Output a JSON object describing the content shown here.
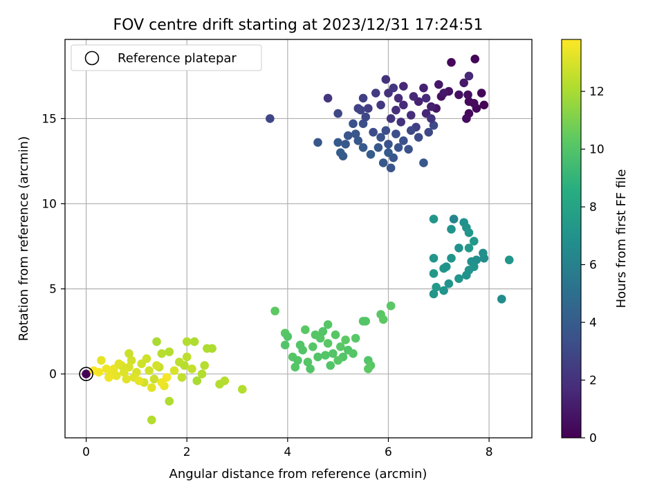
{
  "chart_data": {
    "type": "scatter",
    "title": "FOV centre drift starting at 2023/12/31 17:24:51",
    "xlabel": "Angular distance from reference (arcmin)",
    "ylabel": "Rotation from reference (arcmin)",
    "xlim": [
      -0.42,
      8.85
    ],
    "ylim": [
      -3.75,
      19.65
    ],
    "xticks": [
      0,
      2,
      4,
      6,
      8
    ],
    "yticks": [
      0,
      5,
      10,
      15
    ],
    "grid": true,
    "legend": {
      "location": "top-left",
      "entries": [
        "Reference platepar"
      ]
    },
    "reference_point": {
      "x": 0,
      "y": 0
    },
    "colorbar": {
      "label": "Hours from first FF file",
      "range": [
        0,
        13.8
      ],
      "ticks": [
        0,
        2,
        4,
        6,
        8,
        10,
        12
      ],
      "colormap": "viridis"
    },
    "series": [
      {
        "name": "FOV centre drift",
        "points": [
          {
            "x": 0.0,
            "y": 0.0,
            "h": 0.0
          },
          {
            "x": 7.72,
            "y": 18.5,
            "h": 0.2
          },
          {
            "x": 7.25,
            "y": 18.3,
            "h": 0.3
          },
          {
            "x": 7.85,
            "y": 16.5,
            "h": 0.2
          },
          {
            "x": 7.9,
            "y": 15.8,
            "h": 0.1
          },
          {
            "x": 7.75,
            "y": 15.6,
            "h": 0.2
          },
          {
            "x": 7.6,
            "y": 15.3,
            "h": 0.3
          },
          {
            "x": 7.55,
            "y": 15.0,
            "h": 0.4
          },
          {
            "x": 7.6,
            "y": 16.0,
            "h": 0.3
          },
          {
            "x": 7.58,
            "y": 16.4,
            "h": 0.5
          },
          {
            "x": 7.7,
            "y": 15.9,
            "h": 0.4
          },
          {
            "x": 7.4,
            "y": 16.4,
            "h": 0.6
          },
          {
            "x": 7.2,
            "y": 16.6,
            "h": 0.7
          },
          {
            "x": 7.05,
            "y": 16.3,
            "h": 0.6
          },
          {
            "x": 6.95,
            "y": 15.6,
            "h": 0.8
          },
          {
            "x": 7.0,
            "y": 17.0,
            "h": 0.9
          },
          {
            "x": 7.5,
            "y": 17.1,
            "h": 1.0
          },
          {
            "x": 7.1,
            "y": 16.5,
            "h": 0.9
          },
          {
            "x": 7.6,
            "y": 17.5,
            "h": 1.6
          },
          {
            "x": 6.85,
            "y": 15.7,
            "h": 1.2
          },
          {
            "x": 6.7,
            "y": 16.8,
            "h": 1.3
          },
          {
            "x": 6.6,
            "y": 16.0,
            "h": 1.4
          },
          {
            "x": 6.75,
            "y": 15.3,
            "h": 1.5
          },
          {
            "x": 6.5,
            "y": 16.3,
            "h": 1.6
          },
          {
            "x": 6.3,
            "y": 15.8,
            "h": 1.7
          },
          {
            "x": 6.2,
            "y": 16.2,
            "h": 1.8
          },
          {
            "x": 6.15,
            "y": 15.5,
            "h": 1.9
          },
          {
            "x": 6.0,
            "y": 16.5,
            "h": 2.0
          },
          {
            "x": 6.05,
            "y": 15.0,
            "h": 2.1
          },
          {
            "x": 5.95,
            "y": 17.3,
            "h": 2.0
          },
          {
            "x": 6.1,
            "y": 16.8,
            "h": 2.2
          },
          {
            "x": 5.85,
            "y": 15.8,
            "h": 2.3
          },
          {
            "x": 5.75,
            "y": 16.5,
            "h": 2.4
          },
          {
            "x": 5.6,
            "y": 15.6,
            "h": 2.5
          },
          {
            "x": 5.5,
            "y": 16.2,
            "h": 2.6
          },
          {
            "x": 5.4,
            "y": 15.6,
            "h": 2.7
          },
          {
            "x": 4.8,
            "y": 16.2,
            "h": 2.2
          },
          {
            "x": 3.65,
            "y": 15.0,
            "h": 2.9
          },
          {
            "x": 6.3,
            "y": 16.9,
            "h": 1.6
          },
          {
            "x": 6.45,
            "y": 15.2,
            "h": 1.8
          },
          {
            "x": 6.25,
            "y": 14.8,
            "h": 2.0
          },
          {
            "x": 6.55,
            "y": 14.5,
            "h": 2.6
          },
          {
            "x": 6.8,
            "y": 14.2,
            "h": 3.0
          },
          {
            "x": 6.6,
            "y": 13.9,
            "h": 3.2
          },
          {
            "x": 6.45,
            "y": 14.3,
            "h": 3.0
          },
          {
            "x": 6.3,
            "y": 13.7,
            "h": 3.4
          },
          {
            "x": 6.15,
            "y": 14.1,
            "h": 3.3
          },
          {
            "x": 6.0,
            "y": 13.5,
            "h": 3.5
          },
          {
            "x": 5.95,
            "y": 14.3,
            "h": 3.3
          },
          {
            "x": 5.85,
            "y": 13.9,
            "h": 3.5
          },
          {
            "x": 5.8,
            "y": 13.3,
            "h": 3.7
          },
          {
            "x": 5.9,
            "y": 12.4,
            "h": 3.8
          },
          {
            "x": 6.05,
            "y": 12.1,
            "h": 3.6
          },
          {
            "x": 6.1,
            "y": 12.7,
            "h": 3.7
          },
          {
            "x": 6.7,
            "y": 12.4,
            "h": 3.8
          },
          {
            "x": 6.0,
            "y": 13.0,
            "h": 3.9
          },
          {
            "x": 5.65,
            "y": 12.9,
            "h": 4.0
          },
          {
            "x": 5.5,
            "y": 13.3,
            "h": 3.9
          },
          {
            "x": 5.4,
            "y": 13.7,
            "h": 3.8
          },
          {
            "x": 5.35,
            "y": 14.1,
            "h": 3.7
          },
          {
            "x": 5.2,
            "y": 14.0,
            "h": 3.6
          },
          {
            "x": 5.15,
            "y": 13.5,
            "h": 3.8
          },
          {
            "x": 5.1,
            "y": 12.8,
            "h": 3.9
          },
          {
            "x": 5.05,
            "y": 13.0,
            "h": 4.0
          },
          {
            "x": 5.0,
            "y": 13.6,
            "h": 3.9
          },
          {
            "x": 4.6,
            "y": 13.6,
            "h": 3.7
          },
          {
            "x": 5.3,
            "y": 14.7,
            "h": 3.4
          },
          {
            "x": 5.5,
            "y": 14.7,
            "h": 3.3
          },
          {
            "x": 5.55,
            "y": 15.1,
            "h": 3.0
          },
          {
            "x": 5.45,
            "y": 15.5,
            "h": 2.8
          },
          {
            "x": 5.0,
            "y": 15.3,
            "h": 3.0
          },
          {
            "x": 5.7,
            "y": 14.2,
            "h": 3.2
          },
          {
            "x": 6.4,
            "y": 13.2,
            "h": 3.5
          },
          {
            "x": 6.2,
            "y": 13.3,
            "h": 3.6
          },
          {
            "x": 6.9,
            "y": 14.6,
            "h": 3.1
          },
          {
            "x": 6.75,
            "y": 16.2,
            "h": 1.7
          },
          {
            "x": 6.85,
            "y": 15.0,
            "h": 2.1
          },
          {
            "x": 7.3,
            "y": 9.1,
            "h": 6.2
          },
          {
            "x": 6.9,
            "y": 9.1,
            "h": 7.2
          },
          {
            "x": 7.25,
            "y": 8.5,
            "h": 7.0
          },
          {
            "x": 7.5,
            "y": 8.9,
            "h": 6.9
          },
          {
            "x": 7.55,
            "y": 8.6,
            "h": 7.0
          },
          {
            "x": 7.6,
            "y": 8.3,
            "h": 7.2
          },
          {
            "x": 7.7,
            "y": 7.8,
            "h": 7.3
          },
          {
            "x": 7.6,
            "y": 7.4,
            "h": 7.4
          },
          {
            "x": 6.9,
            "y": 6.8,
            "h": 7.2
          },
          {
            "x": 7.25,
            "y": 6.8,
            "h": 7.0
          },
          {
            "x": 7.1,
            "y": 6.2,
            "h": 7.1
          },
          {
            "x": 7.15,
            "y": 6.3,
            "h": 7.0
          },
          {
            "x": 6.9,
            "y": 5.9,
            "h": 7.3
          },
          {
            "x": 7.4,
            "y": 7.4,
            "h": 6.9
          },
          {
            "x": 7.65,
            "y": 6.6,
            "h": 6.9
          },
          {
            "x": 7.75,
            "y": 6.7,
            "h": 6.8
          },
          {
            "x": 7.9,
            "y": 6.8,
            "h": 6.7
          },
          {
            "x": 7.88,
            "y": 7.1,
            "h": 6.8
          },
          {
            "x": 7.7,
            "y": 6.3,
            "h": 7.0
          },
          {
            "x": 7.6,
            "y": 6.1,
            "h": 7.1
          },
          {
            "x": 7.55,
            "y": 5.8,
            "h": 7.0
          },
          {
            "x": 7.4,
            "y": 5.6,
            "h": 7.2
          },
          {
            "x": 7.2,
            "y": 5.3,
            "h": 7.1
          },
          {
            "x": 6.9,
            "y": 4.7,
            "h": 7.2
          },
          {
            "x": 7.1,
            "y": 4.9,
            "h": 7.1
          },
          {
            "x": 6.95,
            "y": 5.1,
            "h": 7.4
          },
          {
            "x": 8.25,
            "y": 4.4,
            "h": 6.6
          },
          {
            "x": 8.4,
            "y": 6.7,
            "h": 7.2
          },
          {
            "x": 3.75,
            "y": 3.7,
            "h": 10.3
          },
          {
            "x": 6.05,
            "y": 4.0,
            "h": 10.2
          },
          {
            "x": 5.85,
            "y": 3.5,
            "h": 10.2
          },
          {
            "x": 5.9,
            "y": 3.2,
            "h": 10.3
          },
          {
            "x": 5.55,
            "y": 3.1,
            "h": 10.1
          },
          {
            "x": 5.5,
            "y": 3.1,
            "h": 10.0
          },
          {
            "x": 4.8,
            "y": 2.9,
            "h": 10.1
          },
          {
            "x": 4.35,
            "y": 2.6,
            "h": 10.2
          },
          {
            "x": 3.95,
            "y": 2.4,
            "h": 10.2
          },
          {
            "x": 4.0,
            "y": 2.2,
            "h": 10.0
          },
          {
            "x": 3.95,
            "y": 1.7,
            "h": 10.0
          },
          {
            "x": 4.1,
            "y": 1.0,
            "h": 10.1
          },
          {
            "x": 4.2,
            "y": 0.8,
            "h": 10.0
          },
          {
            "x": 4.3,
            "y": 1.4,
            "h": 10.0
          },
          {
            "x": 4.4,
            "y": 0.7,
            "h": 10.1
          },
          {
            "x": 4.45,
            "y": 0.3,
            "h": 10.0
          },
          {
            "x": 4.6,
            "y": 1.0,
            "h": 10.0
          },
          {
            "x": 4.65,
            "y": 2.1,
            "h": 10.1
          },
          {
            "x": 4.7,
            "y": 2.5,
            "h": 10.0
          },
          {
            "x": 4.8,
            "y": 1.8,
            "h": 10.2
          },
          {
            "x": 4.9,
            "y": 1.2,
            "h": 10.0
          },
          {
            "x": 4.95,
            "y": 2.3,
            "h": 10.1
          },
          {
            "x": 5.05,
            "y": 1.6,
            "h": 10.2
          },
          {
            "x": 5.1,
            "y": 1.0,
            "h": 10.0
          },
          {
            "x": 5.15,
            "y": 2.0,
            "h": 10.3
          },
          {
            "x": 5.2,
            "y": 1.4,
            "h": 10.0
          },
          {
            "x": 5.3,
            "y": 1.2,
            "h": 10.1
          },
          {
            "x": 5.35,
            "y": 2.1,
            "h": 10.2
          },
          {
            "x": 5.6,
            "y": 0.8,
            "h": 10.0
          },
          {
            "x": 5.65,
            "y": 0.5,
            "h": 10.2
          },
          {
            "x": 5.6,
            "y": 0.3,
            "h": 10.3
          },
          {
            "x": 4.5,
            "y": 1.6,
            "h": 10.1
          },
          {
            "x": 4.75,
            "y": 1.1,
            "h": 10.0
          },
          {
            "x": 4.25,
            "y": 1.7,
            "h": 10.0
          },
          {
            "x": 4.55,
            "y": 2.3,
            "h": 10.1
          },
          {
            "x": 5.0,
            "y": 0.8,
            "h": 10.2
          },
          {
            "x": 4.85,
            "y": 0.5,
            "h": 10.0
          },
          {
            "x": 4.15,
            "y": 0.4,
            "h": 10.1
          },
          {
            "x": 3.1,
            "y": -0.9,
            "h": 12.2
          },
          {
            "x": 2.75,
            "y": -0.4,
            "h": 12.3
          },
          {
            "x": 2.65,
            "y": -0.6,
            "h": 12.2
          },
          {
            "x": 2.5,
            "y": 1.5,
            "h": 12.1
          },
          {
            "x": 2.4,
            "y": 1.5,
            "h": 12.1
          },
          {
            "x": 2.35,
            "y": 0.5,
            "h": 12.3
          },
          {
            "x": 2.3,
            "y": 0.0,
            "h": 12.2
          },
          {
            "x": 2.2,
            "y": -0.4,
            "h": 12.0
          },
          {
            "x": 2.15,
            "y": 1.9,
            "h": 12.1
          },
          {
            "x": 2.0,
            "y": 1.9,
            "h": 12.2
          },
          {
            "x": 2.0,
            "y": 1.0,
            "h": 12.4
          },
          {
            "x": 1.95,
            "y": 0.5,
            "h": 12.3
          },
          {
            "x": 1.9,
            "y": -0.2,
            "h": 12.5
          },
          {
            "x": 1.85,
            "y": 0.7,
            "h": 12.4
          },
          {
            "x": 1.65,
            "y": 1.3,
            "h": 12.2
          },
          {
            "x": 1.5,
            "y": 1.2,
            "h": 12.3
          },
          {
            "x": 1.4,
            "y": 1.9,
            "h": 12.0
          },
          {
            "x": 1.3,
            "y": -2.7,
            "h": 12.2
          },
          {
            "x": 1.65,
            "y": -1.6,
            "h": 12.1
          },
          {
            "x": 1.45,
            "y": 0.4,
            "h": 12.6
          },
          {
            "x": 1.35,
            "y": -0.3,
            "h": 12.7
          },
          {
            "x": 1.25,
            "y": 0.2,
            "h": 12.8
          },
          {
            "x": 1.15,
            "y": -0.5,
            "h": 12.9
          },
          {
            "x": 1.1,
            "y": 0.6,
            "h": 12.8
          },
          {
            "x": 1.0,
            "y": 0.1,
            "h": 13.0
          },
          {
            "x": 0.95,
            "y": -0.2,
            "h": 13.1
          },
          {
            "x": 0.9,
            "y": 0.8,
            "h": 12.9
          },
          {
            "x": 0.85,
            "y": 0.4,
            "h": 13.0
          },
          {
            "x": 0.8,
            "y": -0.3,
            "h": 13.2
          },
          {
            "x": 0.75,
            "y": 0.1,
            "h": 13.1
          },
          {
            "x": 0.7,
            "y": 0.5,
            "h": 13.0
          },
          {
            "x": 0.6,
            "y": -0.1,
            "h": 13.3
          },
          {
            "x": 0.55,
            "y": 0.3,
            "h": 13.4
          },
          {
            "x": 0.5,
            "y": 0.0,
            "h": 13.4
          },
          {
            "x": 0.45,
            "y": -0.2,
            "h": 13.5
          },
          {
            "x": 0.4,
            "y": 0.3,
            "h": 13.5
          },
          {
            "x": 0.3,
            "y": 0.8,
            "h": 13.3
          },
          {
            "x": 0.25,
            "y": 0.1,
            "h": 13.6
          },
          {
            "x": 0.15,
            "y": 0.2,
            "h": 13.7
          },
          {
            "x": 1.3,
            "y": -0.8,
            "h": 13.2
          },
          {
            "x": 1.55,
            "y": -0.7,
            "h": 13.4
          },
          {
            "x": 1.6,
            "y": -0.2,
            "h": 13.6
          },
          {
            "x": 1.2,
            "y": 0.9,
            "h": 12.8
          },
          {
            "x": 0.85,
            "y": 1.2,
            "h": 12.7
          },
          {
            "x": 1.05,
            "y": -0.4,
            "h": 13.3
          },
          {
            "x": 1.75,
            "y": 0.2,
            "h": 13.0
          },
          {
            "x": 1.4,
            "y": 0.5,
            "h": 12.9
          },
          {
            "x": 1.5,
            "y": -0.5,
            "h": 13.5
          },
          {
            "x": 0.65,
            "y": 0.6,
            "h": 13.2
          },
          {
            "x": 2.1,
            "y": 0.3,
            "h": 12.6
          }
        ]
      }
    ]
  }
}
